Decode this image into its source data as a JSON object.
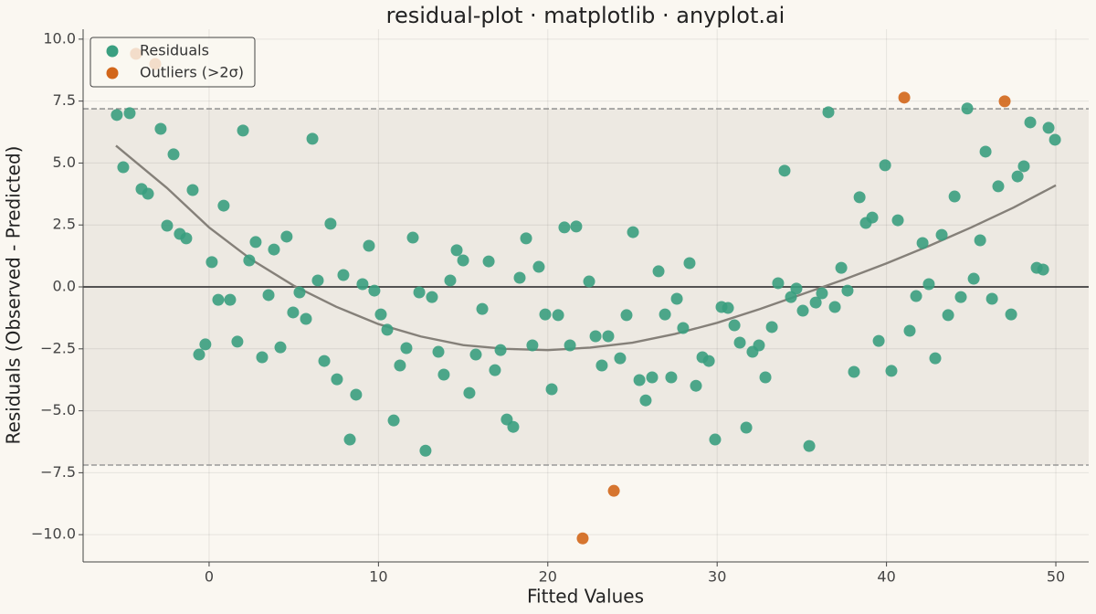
{
  "chart_data": {
    "type": "scatter",
    "title": "residual-plot · matplotlib · anyplot.ai",
    "x_label": "Fitted Values",
    "y_label": "Residuals (Observed - Predicted)",
    "xlim": [
      -7.44,
      51.94
    ],
    "ylim": [
      -11.1,
      10.4
    ],
    "xticks": [
      0,
      10,
      20,
      30,
      40,
      50
    ],
    "yticks": [
      {
        "value": 10,
        "label": "10.0"
      },
      7.5,
      {
        "value": 5,
        "label": "5.0"
      },
      2.5,
      {
        "value": 0,
        "label": "0.0"
      },
      {
        "value": -2.5,
        "label": "−2.5"
      },
      {
        "value": -5,
        "label": "−5.0"
      },
      {
        "value": -7.5,
        "label": "−7.5"
      },
      {
        "value": -10,
        "label": "−10.0"
      }
    ],
    "grid": true,
    "legend": "upper left",
    "threshold": [
      -7.19,
      7.19
    ],
    "series": [
      {
        "name": "Residuals",
        "color": "#3a9f80",
        "x": [
          -5.45,
          -5.07,
          -4.69,
          -3.99,
          -3.61,
          -2.86,
          -2.48,
          -2.1,
          -1.73,
          -1.35,
          -0.97,
          -0.59,
          -0.22,
          0.16,
          0.54,
          0.86,
          1.24,
          1.67,
          2.0,
          2.37,
          2.75,
          3.13,
          3.51,
          3.83,
          4.21,
          4.58,
          4.96,
          5.34,
          5.72,
          6.1,
          6.42,
          6.8,
          7.17,
          7.55,
          7.93,
          8.31,
          8.68,
          9.06,
          9.44,
          9.76,
          10.14,
          10.52,
          10.9,
          11.27,
          11.65,
          12.03,
          12.41,
          12.78,
          13.16,
          13.54,
          13.86,
          14.24,
          14.62,
          15.0,
          15.37,
          15.75,
          16.13,
          16.51,
          16.88,
          17.21,
          17.58,
          17.96,
          18.34,
          18.72,
          19.09,
          19.47,
          19.85,
          20.23,
          20.61,
          20.98,
          21.31,
          21.68,
          22.44,
          22.82,
          23.19,
          23.57,
          24.27,
          24.65,
          25.03,
          25.41,
          25.78,
          26.16,
          26.54,
          26.92,
          27.29,
          27.62,
          27.99,
          28.37,
          28.75,
          29.13,
          29.51,
          29.88,
          30.26,
          30.64,
          31.02,
          31.34,
          31.72,
          32.09,
          32.47,
          32.85,
          33.23,
          33.6,
          33.98,
          34.36,
          34.68,
          35.06,
          35.44,
          35.82,
          36.19,
          36.57,
          36.95,
          37.33,
          37.7,
          38.08,
          38.41,
          38.78,
          39.16,
          39.54,
          39.92,
          40.29,
          40.67,
          41.37,
          41.75,
          42.13,
          42.5,
          42.88,
          43.26,
          43.64,
          44.02,
          44.39,
          44.77,
          45.15,
          45.53,
          45.85,
          46.23,
          46.6,
          47.36,
          47.74,
          48.11,
          48.49,
          48.87,
          49.25,
          49.57,
          49.95
        ],
        "values": [
          6.94,
          4.83,
          7.01,
          3.95,
          3.76,
          6.38,
          2.47,
          5.35,
          2.14,
          1.96,
          3.91,
          -2.73,
          -2.32,
          1.0,
          -0.52,
          3.28,
          -0.52,
          -2.21,
          6.31,
          1.07,
          1.81,
          -2.84,
          -0.33,
          1.51,
          -2.44,
          2.03,
          -1.03,
          -0.22,
          -1.29,
          5.98,
          0.26,
          -2.99,
          2.55,
          -3.73,
          0.48,
          -6.16,
          -4.35,
          0.11,
          1.66,
          -0.15,
          -1.11,
          -1.73,
          -5.39,
          -3.17,
          -2.47,
          1.99,
          -0.22,
          -6.61,
          -0.41,
          -2.62,
          -3.54,
          0.26,
          1.48,
          1.07,
          -4.28,
          -2.73,
          -0.89,
          1.03,
          -3.36,
          -2.55,
          -5.35,
          -5.65,
          0.37,
          1.96,
          -2.36,
          0.81,
          -1.11,
          -4.13,
          -1.14,
          2.4,
          -2.36,
          2.44,
          0.22,
          -1.99,
          -3.17,
          -1.99,
          -2.88,
          -1.14,
          2.21,
          -3.76,
          -4.58,
          -3.65,
          0.63,
          -1.11,
          -3.65,
          -0.48,
          -1.66,
          0.96,
          -3.99,
          -2.84,
          -2.99,
          -6.16,
          -0.81,
          -0.85,
          -1.55,
          -2.25,
          -5.68,
          -2.62,
          -2.36,
          -3.65,
          -1.62,
          0.15,
          4.69,
          -0.41,
          -0.07,
          -0.96,
          -6.42,
          -0.63,
          -0.26,
          7.05,
          -0.81,
          0.77,
          -0.15,
          -3.43,
          3.62,
          2.58,
          2.8,
          -2.18,
          4.91,
          -3.39,
          2.69,
          -1.77,
          -0.37,
          1.77,
          0.11,
          -2.88,
          2.1,
          -1.14,
          3.65,
          -0.41,
          7.2,
          0.33,
          1.88,
          5.46,
          -0.48,
          4.06,
          -1.11,
          4.46,
          4.87,
          6.64,
          0.77,
          0.7,
          6.42,
          5.94
        ]
      },
      {
        "name": "Outliers (>2σ)",
        "color": "#d2661a",
        "x": [
          -4.32,
          -3.18,
          22.06,
          23.9,
          41.05,
          46.98
        ],
        "values": [
          9.41,
          9.0,
          -10.15,
          -8.23,
          7.64,
          7.49
        ]
      }
    ],
    "trend": {
      "color": "#858079",
      "x": [
        -5.5,
        -2.5,
        0,
        2.5,
        5,
        7.5,
        10,
        12.5,
        15,
        17.5,
        20,
        22.5,
        25,
        27.5,
        30,
        32.5,
        35,
        37.5,
        40,
        42.5,
        45,
        47.5,
        50
      ],
      "values": [
        5.7,
        4.0,
        2.4,
        1.1,
        0.05,
        -0.8,
        -1.5,
        -2.0,
        -2.35,
        -2.5,
        -2.55,
        -2.45,
        -2.25,
        -1.9,
        -1.45,
        -0.9,
        -0.3,
        0.3,
        0.95,
        1.65,
        2.4,
        3.2,
        4.1
      ]
    }
  }
}
